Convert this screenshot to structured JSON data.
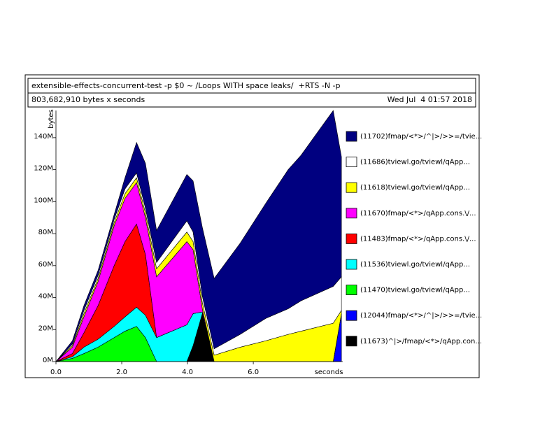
{
  "chart_data": {
    "type": "area",
    "title": "extensible-effects-concurrent-test -p $0 ~ /Loops WITH space leaks/  +RTS -N -p",
    "subtitle": "803,682,910 bytes x seconds",
    "date": "Wed Jul  4 01:57 2018",
    "y_label": "bytes",
    "x_label": "seconds",
    "stacked": true,
    "x": [
      0,
      0.5,
      0.85,
      1.28,
      1.77,
      2.1,
      2.45,
      2.72,
      3.06,
      3.98,
      4.17,
      4.45,
      4.81,
      5.6,
      6.38,
      7.06,
      7.45,
      8.43,
      8.68
    ],
    "xlim": [
      0,
      8.72
    ],
    "xticks": [
      {
        "value": 0,
        "label": "0.0"
      },
      {
        "value": 2,
        "label": "2.0"
      },
      {
        "value": 4,
        "label": "4.0"
      },
      {
        "value": 6,
        "label": "6.0"
      }
    ],
    "ylim": [
      0,
      157
    ],
    "yticks": [
      {
        "value": 0,
        "label": "0M"
      },
      {
        "value": 20,
        "label": "20M"
      },
      {
        "value": 40,
        "label": "40M"
      },
      {
        "value": 60,
        "label": "60M"
      },
      {
        "value": 80,
        "label": "80M"
      },
      {
        "value": 100,
        "label": "100M"
      },
      {
        "value": 120,
        "label": "120M"
      },
      {
        "value": 140,
        "label": "140M"
      }
    ],
    "series": [
      {
        "name": "(11673)^|>/fmap/<*>/qApp.con...",
        "color": "#000000",
        "values": [
          0,
          0,
          0,
          0,
          0,
          0,
          0,
          0,
          0,
          0,
          10,
          30,
          0,
          0,
          0,
          0,
          0,
          0,
          0
        ]
      },
      {
        "name": "(12044)fmap/<*>/^|>/>>=/tvie...",
        "color": "#0000ff",
        "values": [
          0,
          0,
          0,
          0,
          0,
          0,
          0,
          0,
          0,
          0,
          0,
          0,
          0,
          0,
          0,
          0,
          0,
          0,
          30
        ]
      },
      {
        "name": "(11470)tviewl.go/tviewl/qApp...",
        "color": "#00ff00",
        "values": [
          0,
          2,
          5,
          9,
          15,
          19,
          22,
          15,
          0,
          0,
          0,
          0,
          0,
          0,
          0,
          0,
          0,
          0,
          0
        ]
      },
      {
        "name": "(11536)tviewl.go/tviewl/qApp...",
        "color": "#00ffff",
        "values": [
          0,
          1,
          4,
          5,
          7,
          9,
          12,
          14,
          15,
          23,
          20,
          1,
          0,
          0,
          0,
          0,
          0,
          0,
          0
        ]
      },
      {
        "name": "(11483)fmap/<*>/qApp.cons.\\/...",
        "color": "#ff0000",
        "values": [
          0,
          2,
          9,
          21,
          38,
          47,
          52,
          38,
          0,
          0,
          0,
          0,
          0,
          0,
          0,
          0,
          0,
          0,
          0
        ]
      },
      {
        "name": "(11670)fmap/<*>/qApp.cons.\\/...",
        "color": "#ff00ff",
        "values": [
          0,
          4,
          10,
          15,
          25,
          27,
          26,
          23,
          38,
          52,
          40,
          2,
          0,
          0,
          0,
          0,
          0,
          0,
          0
        ]
      },
      {
        "name": "(11618)tviewl.go/tviewl/qApp...",
        "color": "#ffff00",
        "values": [
          0,
          1,
          2,
          2,
          2,
          3,
          3,
          3,
          5,
          6,
          5,
          4,
          4,
          9,
          13,
          17,
          19,
          24,
          2
        ]
      },
      {
        "name": "(11686)tviewl.go/tviewl/qApp...",
        "color": "#ffffff",
        "values": [
          0,
          1,
          2,
          2,
          2,
          3,
          3,
          3,
          4,
          7,
          6,
          4,
          4,
          8,
          14,
          16,
          19,
          23,
          21
        ]
      },
      {
        "name": "(11702)fmap/<*>/^|>/>>=/tvie...",
        "color": "#000080",
        "values": [
          0,
          2,
          3,
          3,
          3,
          7,
          19,
          28,
          20,
          29,
          32,
          43,
          44,
          57,
          72,
          87,
          91,
          110,
          75
        ]
      }
    ]
  }
}
